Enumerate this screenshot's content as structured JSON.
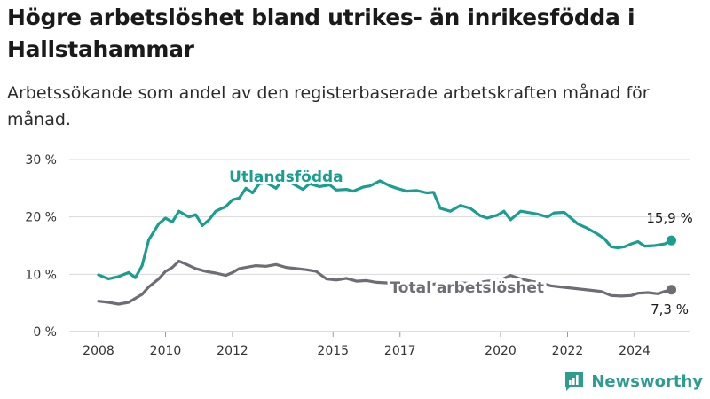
{
  "title": "Högre arbetslöshet bland utrikes- än inrikesfödda i Hallstahammar",
  "subtitle": "Arbetssökande som andel av den registerbaserade arbetskraften månad för månad.",
  "brand": "Newsworthy",
  "colors": {
    "foreign": "#1a9e92",
    "total": "#6e6d76",
    "grid": "#d9d9d9",
    "brand": "#2e9c8f"
  },
  "chart_data": {
    "type": "line",
    "x_unit": "year",
    "ylim": [
      0,
      30
    ],
    "yticks": [
      0,
      10,
      20,
      30
    ],
    "ytick_labels": [
      "0 %",
      "10 %",
      "20 %",
      "30 %"
    ],
    "xticks": [
      2008,
      2010,
      2012,
      2015,
      2017,
      2020,
      2022,
      2024
    ],
    "xtick_labels": [
      "2008",
      "2010",
      "2012",
      "2015",
      "2017",
      "2020",
      "2022",
      "2024"
    ],
    "grid": true,
    "series": [
      {
        "name": "Utlandsfödda",
        "end_label": "15,9 %",
        "points": [
          [
            2008.0,
            9.9
          ],
          [
            2008.3,
            9.2
          ],
          [
            2008.6,
            9.6
          ],
          [
            2008.9,
            10.3
          ],
          [
            2009.1,
            9.4
          ],
          [
            2009.3,
            11.5
          ],
          [
            2009.5,
            16.0
          ],
          [
            2009.8,
            18.8
          ],
          [
            2010.0,
            19.8
          ],
          [
            2010.2,
            19.1
          ],
          [
            2010.4,
            21.0
          ],
          [
            2010.7,
            20.0
          ],
          [
            2010.9,
            20.4
          ],
          [
            2011.1,
            18.5
          ],
          [
            2011.3,
            19.5
          ],
          [
            2011.5,
            21.0
          ],
          [
            2011.8,
            21.8
          ],
          [
            2012.0,
            23.0
          ],
          [
            2012.2,
            23.3
          ],
          [
            2012.4,
            25.0
          ],
          [
            2012.6,
            24.2
          ],
          [
            2012.8,
            25.8
          ],
          [
            2013.0,
            26.0
          ],
          [
            2013.3,
            25.0
          ],
          [
            2013.5,
            26.5
          ],
          [
            2013.8,
            25.8
          ],
          [
            2014.1,
            24.8
          ],
          [
            2014.3,
            25.8
          ],
          [
            2014.6,
            25.3
          ],
          [
            2014.9,
            25.6
          ],
          [
            2015.1,
            24.7
          ],
          [
            2015.4,
            24.8
          ],
          [
            2015.6,
            24.5
          ],
          [
            2015.9,
            25.2
          ],
          [
            2016.1,
            25.4
          ],
          [
            2016.4,
            26.3
          ],
          [
            2016.7,
            25.4
          ],
          [
            2016.9,
            25.0
          ],
          [
            2017.2,
            24.5
          ],
          [
            2017.5,
            24.6
          ],
          [
            2017.8,
            24.2
          ],
          [
            2018.0,
            24.3
          ],
          [
            2018.2,
            21.5
          ],
          [
            2018.5,
            21.0
          ],
          [
            2018.8,
            22.0
          ],
          [
            2019.1,
            21.5
          ],
          [
            2019.4,
            20.2
          ],
          [
            2019.6,
            19.8
          ],
          [
            2019.9,
            20.3
          ],
          [
            2020.1,
            21.0
          ],
          [
            2020.3,
            19.5
          ],
          [
            2020.6,
            21.0
          ],
          [
            2020.9,
            20.7
          ],
          [
            2021.1,
            20.5
          ],
          [
            2021.4,
            20.0
          ],
          [
            2021.6,
            20.7
          ],
          [
            2021.9,
            20.8
          ],
          [
            2022.1,
            19.8
          ],
          [
            2022.3,
            18.8
          ],
          [
            2022.6,
            18.0
          ],
          [
            2022.9,
            17.0
          ],
          [
            2023.1,
            16.2
          ],
          [
            2023.3,
            14.8
          ],
          [
            2023.5,
            14.6
          ],
          [
            2023.7,
            14.8
          ],
          [
            2023.9,
            15.3
          ],
          [
            2024.1,
            15.7
          ],
          [
            2024.3,
            14.9
          ],
          [
            2024.6,
            15.0
          ],
          [
            2024.9,
            15.3
          ],
          [
            2025.1,
            15.9
          ]
        ]
      },
      {
        "name": "Total arbetslöshet",
        "end_label": "7,3 %",
        "points": [
          [
            2008.0,
            5.3
          ],
          [
            2008.3,
            5.1
          ],
          [
            2008.6,
            4.8
          ],
          [
            2008.9,
            5.1
          ],
          [
            2009.1,
            5.8
          ],
          [
            2009.3,
            6.5
          ],
          [
            2009.5,
            7.8
          ],
          [
            2009.8,
            9.2
          ],
          [
            2010.0,
            10.5
          ],
          [
            2010.2,
            11.2
          ],
          [
            2010.4,
            12.3
          ],
          [
            2010.6,
            11.8
          ],
          [
            2010.9,
            11.0
          ],
          [
            2011.2,
            10.5
          ],
          [
            2011.5,
            10.2
          ],
          [
            2011.8,
            9.8
          ],
          [
            2012.0,
            10.3
          ],
          [
            2012.2,
            11.0
          ],
          [
            2012.4,
            11.2
          ],
          [
            2012.7,
            11.5
          ],
          [
            2013.0,
            11.4
          ],
          [
            2013.3,
            11.7
          ],
          [
            2013.6,
            11.2
          ],
          [
            2013.9,
            11.0
          ],
          [
            2014.2,
            10.8
          ],
          [
            2014.5,
            10.5
          ],
          [
            2014.8,
            9.2
          ],
          [
            2015.1,
            9.0
          ],
          [
            2015.4,
            9.3
          ],
          [
            2015.7,
            8.8
          ],
          [
            2016.0,
            8.9
          ],
          [
            2016.3,
            8.6
          ],
          [
            2016.6,
            8.5
          ],
          [
            2016.9,
            8.4
          ],
          [
            2017.2,
            8.2
          ],
          [
            2017.6,
            8.2
          ],
          [
            2018.0,
            8.3
          ],
          [
            2018.4,
            8.4
          ],
          [
            2018.8,
            8.5
          ],
          [
            2019.2,
            8.4
          ],
          [
            2019.6,
            8.8
          ],
          [
            2020.0,
            9.0
          ],
          [
            2020.3,
            9.8
          ],
          [
            2020.6,
            9.2
          ],
          [
            2020.9,
            8.8
          ],
          [
            2021.2,
            8.5
          ],
          [
            2021.5,
            8.0
          ],
          [
            2021.8,
            7.8
          ],
          [
            2022.1,
            7.6
          ],
          [
            2022.4,
            7.4
          ],
          [
            2022.7,
            7.2
          ],
          [
            2023.0,
            7.0
          ],
          [
            2023.3,
            6.3
          ],
          [
            2023.6,
            6.2
          ],
          [
            2023.9,
            6.3
          ],
          [
            2024.1,
            6.7
          ],
          [
            2024.4,
            6.8
          ],
          [
            2024.7,
            6.6
          ],
          [
            2024.9,
            7.0
          ],
          [
            2025.1,
            7.3
          ]
        ]
      }
    ],
    "annotations": [
      {
        "text": "Utlandsfödda",
        "series": 0,
        "x": 2013.6
      },
      {
        "text": "Total arbetslöshet",
        "series": 1,
        "x": 2019.0
      }
    ]
  }
}
